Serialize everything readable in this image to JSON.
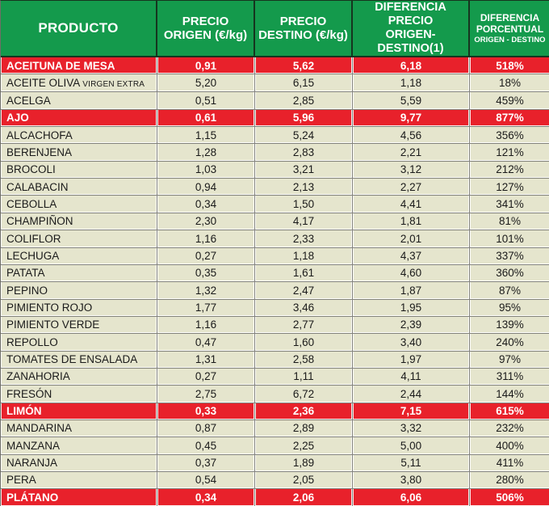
{
  "colors": {
    "header_green": "#149a4c",
    "header_separator_dark_green": "#16351f",
    "highlight_red": "#e8212b",
    "row_beige": "#e5e5cd",
    "grid_gray": "#82827a",
    "text_dark": "#1a1a1a",
    "text_white": "#ffffff"
  },
  "table": {
    "columns": [
      {
        "lines": [
          "PRODUCTO"
        ]
      },
      {
        "lines": [
          "PRECIO",
          "ORIGEN (€/kg)"
        ]
      },
      {
        "lines": [
          "PRECIO",
          "DESTINO (€/kg)"
        ]
      },
      {
        "lines": [
          "DIFERENCIA PRECIO",
          "ORIGEN-DESTINO(1)"
        ]
      },
      {
        "lines": [
          "DIFERENCIA",
          "PORCENTUAL"
        ],
        "subline": "ORIGEN - DESTINO"
      }
    ],
    "rows": [
      {
        "product": "ACEITUNA DE MESA",
        "suffix": "",
        "origen": "0,91",
        "destino": "5,62",
        "diferencia": "6,18",
        "porcentual": "518%",
        "highlight": true
      },
      {
        "product": "ACEITE OLIVA",
        "suffix": "VIRGEN EXTRA",
        "origen": "5,20",
        "destino": "6,15",
        "diferencia": "1,18",
        "porcentual": "18%",
        "highlight": false
      },
      {
        "product": "ACELGA",
        "suffix": "",
        "origen": "0,51",
        "destino": "2,85",
        "diferencia": "5,59",
        "porcentual": "459%",
        "highlight": false
      },
      {
        "product": "AJO",
        "suffix": "",
        "origen": "0,61",
        "destino": "5,96",
        "diferencia": "9,77",
        "porcentual": "877%",
        "highlight": true
      },
      {
        "product": "ALCACHOFA",
        "suffix": "",
        "origen": "1,15",
        "destino": "5,24",
        "diferencia": "4,56",
        "porcentual": "356%",
        "highlight": false
      },
      {
        "product": "BERENJENA",
        "suffix": "",
        "origen": "1,28",
        "destino": "2,83",
        "diferencia": "2,21",
        "porcentual": "121%",
        "highlight": false
      },
      {
        "product": "BROCOLI",
        "suffix": "",
        "origen": "1,03",
        "destino": "3,21",
        "diferencia": "3,12",
        "porcentual": "212%",
        "highlight": false
      },
      {
        "product": "CALABACIN",
        "suffix": "",
        "origen": "0,94",
        "destino": "2,13",
        "diferencia": "2,27",
        "porcentual": "127%",
        "highlight": false
      },
      {
        "product": "CEBOLLA",
        "suffix": "",
        "origen": "0,34",
        "destino": "1,50",
        "diferencia": "4,41",
        "porcentual": "341%",
        "highlight": false
      },
      {
        "product": "CHAMPIÑON",
        "suffix": "",
        "origen": "2,30",
        "destino": "4,17",
        "diferencia": "1,81",
        "porcentual": "81%",
        "highlight": false
      },
      {
        "product": "COLIFLOR",
        "suffix": "",
        "origen": "1,16",
        "destino": "2,33",
        "diferencia": "2,01",
        "porcentual": "101%",
        "highlight": false
      },
      {
        "product": "LECHUGA",
        "suffix": "",
        "origen": "0,27",
        "destino": "1,18",
        "diferencia": "4,37",
        "porcentual": "337%",
        "highlight": false
      },
      {
        "product": "PATATA",
        "suffix": "",
        "origen": "0,35",
        "destino": "1,61",
        "diferencia": "4,60",
        "porcentual": "360%",
        "highlight": false
      },
      {
        "product": "PEPINO",
        "suffix": "",
        "origen": "1,32",
        "destino": "2,47",
        "diferencia": "1,87",
        "porcentual": "87%",
        "highlight": false
      },
      {
        "product": "PIMIENTO ROJO",
        "suffix": "",
        "origen": "1,77",
        "destino": "3,46",
        "diferencia": "1,95",
        "porcentual": "95%",
        "highlight": false
      },
      {
        "product": "PIMIENTO VERDE",
        "suffix": "",
        "origen": "1,16",
        "destino": "2,77",
        "diferencia": "2,39",
        "porcentual": "139%",
        "highlight": false
      },
      {
        "product": "REPOLLO",
        "suffix": "",
        "origen": "0,47",
        "destino": "1,60",
        "diferencia": "3,40",
        "porcentual": "240%",
        "highlight": false
      },
      {
        "product": "TOMATES DE ENSALADA",
        "suffix": "",
        "origen": "1,31",
        "destino": "2,58",
        "diferencia": "1,97",
        "porcentual": "97%",
        "highlight": false
      },
      {
        "product": "ZANAHORIA",
        "suffix": "",
        "origen": "0,27",
        "destino": "1,11",
        "diferencia": "4,11",
        "porcentual": "311%",
        "highlight": false
      },
      {
        "product": "FRESÓN",
        "suffix": "",
        "origen": "2,75",
        "destino": "6,72",
        "diferencia": "2,44",
        "porcentual": "144%",
        "highlight": false
      },
      {
        "product": "LIMÓN",
        "suffix": "",
        "origen": "0,33",
        "destino": "2,36",
        "diferencia": "7,15",
        "porcentual": "615%",
        "highlight": true
      },
      {
        "product": "MANDARINA",
        "suffix": "",
        "origen": "0,87",
        "destino": "2,89",
        "diferencia": "3,32",
        "porcentual": "232%",
        "highlight": false
      },
      {
        "product": "MANZANA",
        "suffix": "",
        "origen": "0,45",
        "destino": "2,25",
        "diferencia": "5,00",
        "porcentual": "400%",
        "highlight": false
      },
      {
        "product": "NARANJA",
        "suffix": "",
        "origen": "0,37",
        "destino": "1,89",
        "diferencia": "5,11",
        "porcentual": "411%",
        "highlight": false
      },
      {
        "product": "PERA",
        "suffix": "",
        "origen": "0,54",
        "destino": "2,05",
        "diferencia": "3,80",
        "porcentual": "280%",
        "highlight": false
      },
      {
        "product": "PLÁTANO",
        "suffix": "",
        "origen": "0,34",
        "destino": "2,06",
        "diferencia": "6,06",
        "porcentual": "506%",
        "highlight": true
      }
    ]
  },
  "chart_data": {
    "type": "table",
    "title": "",
    "columns": [
      "PRODUCTO",
      "PRECIO ORIGEN (€/kg)",
      "PRECIO DESTINO (€/kg)",
      "DIFERENCIA PRECIO ORIGEN-DESTINO(1)",
      "DIFERENCIA PORCENTUAL ORIGEN - DESTINO"
    ],
    "rows": [
      [
        "ACEITUNA DE MESA",
        0.91,
        5.62,
        6.18,
        "518%"
      ],
      [
        "ACEITE OLIVA VIRGEN EXTRA",
        5.2,
        6.15,
        1.18,
        "18%"
      ],
      [
        "ACELGA",
        0.51,
        2.85,
        5.59,
        "459%"
      ],
      [
        "AJO",
        0.61,
        5.96,
        9.77,
        "877%"
      ],
      [
        "ALCACHOFA",
        1.15,
        5.24,
        4.56,
        "356%"
      ],
      [
        "BERENJENA",
        1.28,
        2.83,
        2.21,
        "121%"
      ],
      [
        "BROCOLI",
        1.03,
        3.21,
        3.12,
        "212%"
      ],
      [
        "CALABACIN",
        0.94,
        2.13,
        2.27,
        "127%"
      ],
      [
        "CEBOLLA",
        0.34,
        1.5,
        4.41,
        "341%"
      ],
      [
        "CHAMPIÑON",
        2.3,
        4.17,
        1.81,
        "81%"
      ],
      [
        "COLIFLOR",
        1.16,
        2.33,
        2.01,
        "101%"
      ],
      [
        "LECHUGA",
        0.27,
        1.18,
        4.37,
        "337%"
      ],
      [
        "PATATA",
        0.35,
        1.61,
        4.6,
        "360%"
      ],
      [
        "PEPINO",
        1.32,
        2.47,
        1.87,
        "87%"
      ],
      [
        "PIMIENTO ROJO",
        1.77,
        3.46,
        1.95,
        "95%"
      ],
      [
        "PIMIENTO VERDE",
        1.16,
        2.77,
        2.39,
        "139%"
      ],
      [
        "REPOLLO",
        0.47,
        1.6,
        3.4,
        "240%"
      ],
      [
        "TOMATES DE ENSALADA",
        1.31,
        2.58,
        1.97,
        "97%"
      ],
      [
        "ZANAHORIA",
        0.27,
        1.11,
        4.11,
        "311%"
      ],
      [
        "FRESÓN",
        2.75,
        6.72,
        2.44,
        "144%"
      ],
      [
        "LIMÓN",
        0.33,
        2.36,
        7.15,
        "615%"
      ],
      [
        "MANDARINA",
        0.87,
        2.89,
        3.32,
        "232%"
      ],
      [
        "MANZANA",
        0.45,
        2.25,
        5.0,
        "400%"
      ],
      [
        "NARANJA",
        0.37,
        1.89,
        5.11,
        "411%"
      ],
      [
        "PERA",
        0.54,
        2.05,
        3.8,
        "280%"
      ],
      [
        "PLÁTANO",
        0.34,
        2.06,
        6.06,
        "506%"
      ]
    ],
    "highlighted_rows": [
      "ACEITUNA DE MESA",
      "AJO",
      "LIMÓN",
      "PLÁTANO"
    ],
    "notes": "Highlighted rows shown in red with white bold text; header in green with white bold text."
  }
}
